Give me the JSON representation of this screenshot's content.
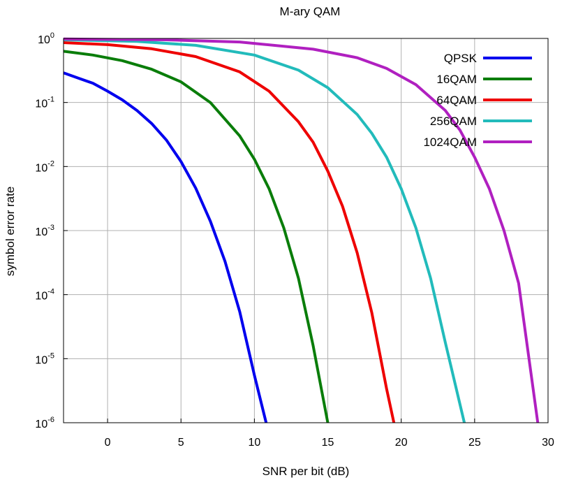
{
  "chart_data": {
    "type": "line",
    "title": "M-ary QAM",
    "xlabel": "SNR per bit (dB)",
    "ylabel": "symbol error rate",
    "xlim": [
      -3,
      30
    ],
    "ylim": [
      1e-06,
      1
    ],
    "yscale": "log",
    "grid": true,
    "legend_position": "top-right",
    "x_ticks": [
      0,
      5,
      10,
      15,
      20,
      25,
      30
    ],
    "y_ticks": [
      {
        "value": 1,
        "base": "10",
        "exp": "0"
      },
      {
        "value": 0.1,
        "base": "10",
        "exp": "-1"
      },
      {
        "value": 0.01,
        "base": "10",
        "exp": "-2"
      },
      {
        "value": 0.001,
        "base": "10",
        "exp": "-3"
      },
      {
        "value": 0.0001,
        "base": "10",
        "exp": "-4"
      },
      {
        "value": 1e-05,
        "base": "10",
        "exp": "-5"
      },
      {
        "value": 1e-06,
        "base": "10",
        "exp": "-6"
      }
    ],
    "series": [
      {
        "name": "QPSK",
        "color": "#0000ee",
        "x": [
          -3,
          -2,
          -1,
          0,
          1,
          2,
          3,
          4,
          5,
          6,
          7,
          8,
          9,
          10,
          10.8
        ],
        "y": [
          0.29,
          0.24,
          0.2,
          0.15,
          0.11,
          0.075,
          0.047,
          0.026,
          0.012,
          0.0046,
          0.0014,
          0.00033,
          5.4e-05,
          5.5e-06,
          1e-06
        ]
      },
      {
        "name": "16QAM",
        "color": "#0a7d0a",
        "x": [
          -3,
          -1,
          1,
          3,
          5,
          7,
          9,
          10,
          11,
          12,
          13,
          14,
          15
        ],
        "y": [
          0.63,
          0.55,
          0.45,
          0.33,
          0.21,
          0.1,
          0.03,
          0.013,
          0.0045,
          0.0011,
          0.00018,
          1.6e-05,
          1e-06
        ]
      },
      {
        "name": "64QAM",
        "color": "#ee0000",
        "x": [
          -3,
          0,
          3,
          6,
          9,
          11,
          13,
          14,
          15,
          16,
          17,
          18,
          19,
          19.5
        ],
        "y": [
          0.86,
          0.8,
          0.69,
          0.52,
          0.3,
          0.15,
          0.05,
          0.024,
          0.0085,
          0.0024,
          0.00045,
          5.2e-05,
          3.4e-06,
          1e-06
        ]
      },
      {
        "name": "256QAM",
        "color": "#22bbbb",
        "x": [
          -3,
          2,
          6,
          10,
          13,
          15,
          17,
          18,
          19,
          20,
          21,
          22,
          23,
          24.3
        ],
        "y": [
          0.95,
          0.9,
          0.78,
          0.55,
          0.32,
          0.17,
          0.065,
          0.033,
          0.014,
          0.0045,
          0.0011,
          0.00018,
          1.8e-05,
          1e-06
        ]
      },
      {
        "name": "1024QAM",
        "color": "#b020c0",
        "x": [
          -3,
          4,
          9,
          14,
          17,
          19,
          21,
          23,
          24,
          25,
          26,
          27,
          28,
          29.3
        ],
        "y": [
          0.98,
          0.95,
          0.88,
          0.68,
          0.5,
          0.34,
          0.19,
          0.075,
          0.037,
          0.014,
          0.0045,
          0.001,
          0.00015,
          1e-06
        ]
      }
    ]
  }
}
